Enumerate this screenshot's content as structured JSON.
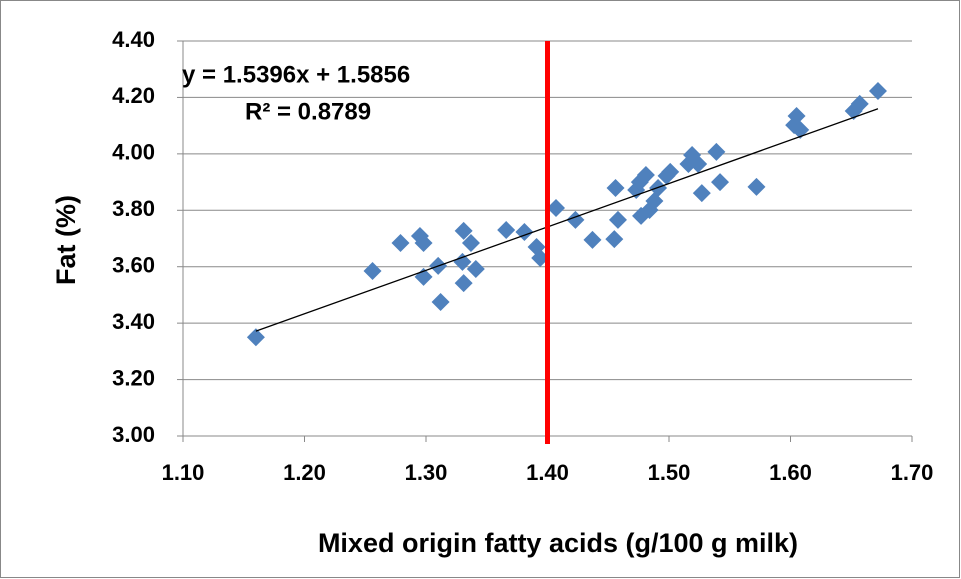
{
  "chart_data": {
    "type": "scatter",
    "x": [
      1.16,
      1.256,
      1.279,
      1.295,
      1.298,
      1.298,
      1.31,
      1.312,
      1.33,
      1.331,
      1.331,
      1.337,
      1.341,
      1.366,
      1.381,
      1.391,
      1.394,
      1.407,
      1.423,
      1.437,
      1.455,
      1.456,
      1.458,
      1.473,
      1.476,
      1.477,
      1.481,
      1.484,
      1.488,
      1.491,
      1.498,
      1.501,
      1.516,
      1.519,
      1.524,
      1.527,
      1.539,
      1.542,
      1.572,
      1.603,
      1.605,
      1.608,
      1.652,
      1.657,
      1.672
    ],
    "values": [
      3.35,
      3.585,
      3.684,
      3.709,
      3.684,
      3.564,
      3.603,
      3.475,
      3.617,
      3.727,
      3.542,
      3.684,
      3.592,
      3.73,
      3.723,
      3.67,
      3.631,
      3.808,
      3.766,
      3.695,
      3.698,
      3.879,
      3.766,
      3.872,
      3.9,
      3.78,
      3.925,
      3.801,
      3.833,
      3.879,
      3.922,
      3.936,
      3.964,
      3.996,
      3.964,
      3.861,
      4.007,
      3.9,
      3.883,
      4.102,
      4.134,
      4.085,
      4.152,
      4.177,
      4.223
    ],
    "color": "#4f81bd",
    "xlabel": "Mixed origin fatty acids (g/100 g milk)",
    "ylabel": "Fat (%)",
    "xlim": [
      1.1,
      1.7
    ],
    "ylim": [
      3.0,
      4.4
    ],
    "xticks": [
      {
        "value": 1.1,
        "label": "1.10"
      },
      {
        "value": 1.2,
        "label": "1.20"
      },
      {
        "value": 1.3,
        "label": "1.30"
      },
      {
        "value": 1.4,
        "label": "1.40"
      },
      {
        "value": 1.5,
        "label": "1.50"
      },
      {
        "value": 1.6,
        "label": "1.60"
      },
      {
        "value": 1.7,
        "label": "1.70"
      }
    ],
    "yticks": [
      {
        "value": 3.0,
        "label": "3.00"
      },
      {
        "value": 3.2,
        "label": "3.20"
      },
      {
        "value": 3.4,
        "label": "3.40"
      },
      {
        "value": 3.6,
        "label": "3.60"
      },
      {
        "value": 3.8,
        "label": "3.80"
      },
      {
        "value": 4.0,
        "label": "4.00"
      },
      {
        "value": 4.2,
        "label": "4.20"
      },
      {
        "value": 4.4,
        "label": "4.40"
      }
    ],
    "grid": true,
    "trendline": {
      "slope": 1.5396,
      "intercept": 1.5856,
      "x": [
        1.16,
        1.672
      ],
      "color": "#000000"
    },
    "vline": {
      "x": 1.4,
      "color": "#ff0000"
    },
    "annotations": [
      "y = 1.5396x + 1.5856",
      "R² = 0.8789"
    ]
  }
}
